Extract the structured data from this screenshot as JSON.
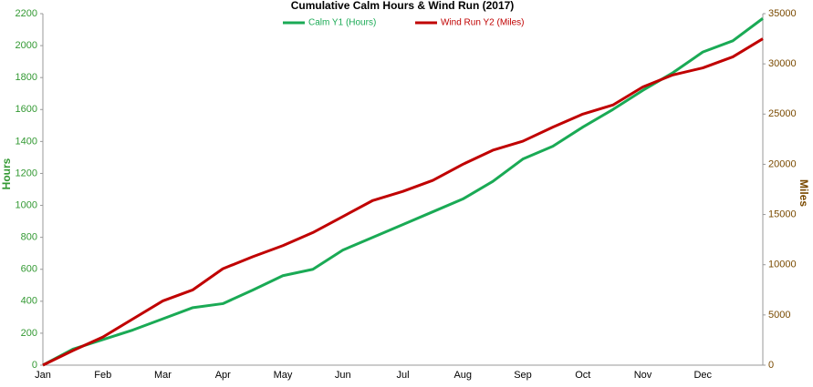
{
  "chart_data": {
    "type": "line",
    "title": "Cumulative Calm Hours & Wind Run (2017)",
    "y_label": "Hours",
    "y2_label": "Miles",
    "categories": [
      "Jan",
      null,
      "Feb",
      null,
      "Mar",
      null,
      "Apr",
      null,
      "May",
      null,
      "Jun",
      null,
      "Jul",
      null,
      "Aug",
      null,
      "Sep",
      null,
      "Oct",
      null,
      "Nov",
      null,
      "Dec",
      null,
      null
    ],
    "series": [
      {
        "name": "Calm Y1 (Hours)",
        "color": "#1aaa55",
        "axis": "y",
        "values": [
          0,
          100,
          160,
          220,
          290,
          360,
          385,
          470,
          560,
          600,
          720,
          800,
          880,
          960,
          1040,
          1150,
          1290,
          1370,
          1490,
          1600,
          1720,
          1830,
          1960,
          2030,
          2170
        ]
      },
      {
        "name": "Wind Run Y2 (Miles)",
        "color": "#c00000",
        "axis": "y2",
        "values": [
          0,
          1450,
          2800,
          4600,
          6400,
          7500,
          9600,
          10800,
          11900,
          13200,
          14800,
          16400,
          17300,
          18400,
          20000,
          21400,
          22300,
          23700,
          25000,
          25900,
          27700,
          28900,
          29600,
          30700,
          32500
        ]
      }
    ],
    "ylim": [
      0,
      2200
    ],
    "yticks": [
      0,
      200,
      400,
      600,
      800,
      1000,
      1200,
      1400,
      1600,
      1800,
      2000,
      2200
    ],
    "y2lim": [
      0,
      35000
    ],
    "y2ticks": [
      0,
      5000,
      10000,
      15000,
      20000,
      25000,
      30000,
      35000
    ],
    "grid": false,
    "legend": "top"
  }
}
